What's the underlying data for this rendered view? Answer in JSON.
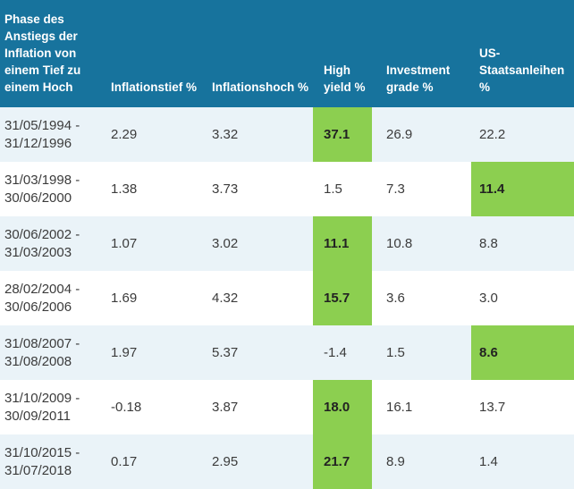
{
  "colors": {
    "header_bg": "#17739d",
    "header_text": "#ffffff",
    "row_bg": "#ffffff",
    "row_alt_bg": "#eaf3f8",
    "highlight_green": "#8ccf50",
    "body_text": "#3b3b3b"
  },
  "table": {
    "columns": [
      {
        "key": "phase",
        "label": "Phase des Anstiegs der Inflation von einem Tief zu einem Hoch"
      },
      {
        "key": "inflationstief",
        "label": "Inflationstief %"
      },
      {
        "key": "inflationshoch",
        "label": "Inflationshoch %"
      },
      {
        "key": "high_yield",
        "label": "High yield %"
      },
      {
        "key": "investment_grade",
        "label": "Investment grade %"
      },
      {
        "key": "us_staatsanleihen",
        "label": "US-Staatsanleihen %"
      }
    ],
    "rows": [
      {
        "phase": "31/05/1994 - 31/12/1996",
        "inflationstief": "2.29",
        "inflationshoch": "3.32",
        "high_yield": "37.1",
        "investment_grade": "26.9",
        "us_staatsanleihen": "22.2",
        "highlight": "high_yield"
      },
      {
        "phase": "31/03/1998 - 30/06/2000",
        "inflationstief": "1.38",
        "inflationshoch": "3.73",
        "high_yield": "1.5",
        "investment_grade": "7.3",
        "us_staatsanleihen": "11.4",
        "highlight": "us_staatsanleihen"
      },
      {
        "phase": "30/06/2002 - 31/03/2003",
        "inflationstief": "1.07",
        "inflationshoch": "3.02",
        "high_yield": "11.1",
        "investment_grade": "10.8",
        "us_staatsanleihen": "8.8",
        "highlight": "high_yield"
      },
      {
        "phase": "28/02/2004 - 30/06/2006",
        "inflationstief": "1.69",
        "inflationshoch": "4.32",
        "high_yield": "15.7",
        "investment_grade": "3.6",
        "us_staatsanleihen": "3.0",
        "highlight": "high_yield"
      },
      {
        "phase": "31/08/2007 - 31/08/2008",
        "inflationstief": "1.97",
        "inflationshoch": "5.37",
        "high_yield": "-1.4",
        "investment_grade": "1.5",
        "us_staatsanleihen": "8.6",
        "highlight": "us_staatsanleihen"
      },
      {
        "phase": "31/10/2009 - 30/09/2011",
        "inflationstief": "-0.18",
        "inflationshoch": "3.87",
        "high_yield": "18.0",
        "investment_grade": "16.1",
        "us_staatsanleihen": "13.7",
        "highlight": "high_yield"
      },
      {
        "phase": "31/10/2015 - 31/07/2018",
        "inflationstief": "0.17",
        "inflationshoch": "2.95",
        "high_yield": "21.7",
        "investment_grade": "8.9",
        "us_staatsanleihen": "1.4",
        "highlight": "high_yield"
      }
    ]
  },
  "chart_data": {
    "type": "table",
    "title": "Phase des Anstiegs der Inflation von einem Tief zu einem Hoch",
    "categories": [
      "31/05/1994 - 31/12/1996",
      "31/03/1998 - 30/06/2000",
      "30/06/2002 - 31/03/2003",
      "28/02/2004 - 30/06/2006",
      "31/08/2007 - 31/08/2008",
      "31/10/2009 - 30/09/2011",
      "31/10/2015 - 31/07/2018"
    ],
    "series": [
      {
        "name": "Inflationstief %",
        "values": [
          2.29,
          1.38,
          1.07,
          1.69,
          1.97,
          -0.18,
          0.17
        ]
      },
      {
        "name": "Inflationshoch %",
        "values": [
          3.32,
          3.73,
          3.02,
          4.32,
          5.37,
          3.87,
          2.95
        ]
      },
      {
        "name": "High yield %",
        "values": [
          37.1,
          1.5,
          11.1,
          15.7,
          -1.4,
          18.0,
          21.7
        ]
      },
      {
        "name": "Investment grade %",
        "values": [
          26.9,
          7.3,
          10.8,
          3.6,
          1.5,
          16.1,
          8.9
        ]
      },
      {
        "name": "US-Staatsanleihen %",
        "values": [
          22.2,
          11.4,
          8.8,
          3.0,
          8.6,
          13.7,
          1.4
        ]
      }
    ],
    "highlighted_best_per_row": [
      "High yield %",
      "US-Staatsanleihen %",
      "High yield %",
      "High yield %",
      "US-Staatsanleihen %",
      "High yield %",
      "High yield %"
    ],
    "legend_position": "none",
    "grid": false
  }
}
